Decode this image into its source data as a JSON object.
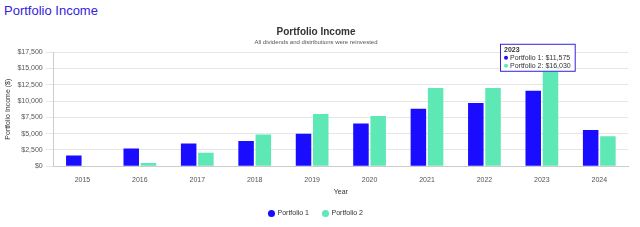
{
  "header": "Portfolio Income",
  "chart_data": {
    "type": "bar",
    "title": "Portfolio Income",
    "subtitle": "All dividends and distributions were reinvested",
    "x_label": "Year",
    "y_label": "Portfolio Income ($)",
    "categories": [
      "2015",
      "2016",
      "2017",
      "2018",
      "2019",
      "2020",
      "2021",
      "2022",
      "2023",
      "2024"
    ],
    "series": [
      {
        "name": "Portfolio 1",
        "color": "#1a0dff",
        "values": [
          1650,
          2700,
          3500,
          3850,
          5000,
          6550,
          8800,
          9700,
          11575,
          5550
        ]
      },
      {
        "name": "Portfolio 2",
        "color": "#5ee8b5",
        "values": [
          0,
          500,
          2050,
          4850,
          8000,
          7700,
          12000,
          12000,
          16030,
          4600
        ]
      }
    ],
    "ylim": [
      0,
      17500
    ],
    "yticks": [
      {
        "value": 0,
        "label": "$0"
      },
      {
        "value": 2500,
        "label": "$2,500"
      },
      {
        "value": 5000,
        "label": "$5,000"
      },
      {
        "value": 7500,
        "label": "$7,500"
      },
      {
        "value": 10000,
        "label": "$10,000"
      },
      {
        "value": 12500,
        "label": "$12,500"
      },
      {
        "value": 15000,
        "label": "$15,000"
      },
      {
        "value": 17500,
        "label": "$17,500"
      }
    ],
    "grid": true,
    "legend": "bottom",
    "annotations": [
      {
        "category": "2023",
        "lines": [
          "Portfolio 1: $11,575",
          "Portfolio 2: $16,030"
        ]
      }
    ]
  }
}
